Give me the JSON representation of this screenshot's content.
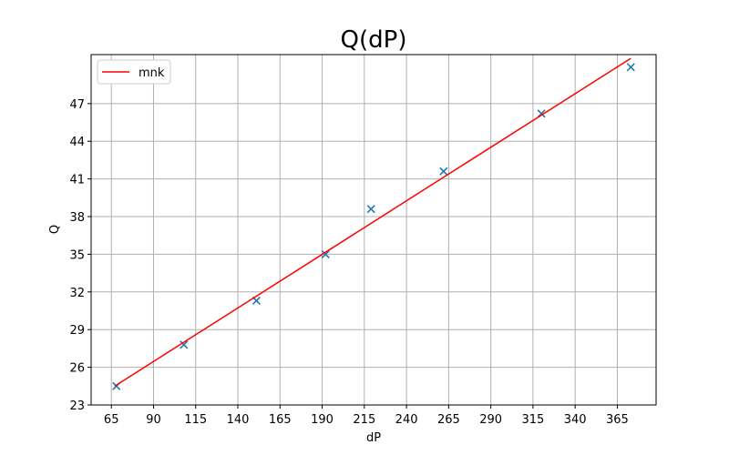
{
  "chart_data": {
    "type": "scatter",
    "title": "Q(dP)",
    "xlabel": "dP",
    "ylabel": "Q",
    "xlim": [
      53,
      388
    ],
    "ylim": [
      23,
      50.9
    ],
    "xticks": [
      65,
      90,
      115,
      140,
      165,
      190,
      215,
      240,
      265,
      290,
      315,
      340,
      365
    ],
    "yticks": [
      23,
      26,
      29,
      32,
      35,
      38,
      41,
      44,
      47
    ],
    "grid": true,
    "legend_position": "top-left",
    "series": [
      {
        "name": "",
        "kind": "scatter",
        "marker": "x",
        "color": "#1f77b4",
        "x": [
          68,
          108,
          151,
          192,
          219,
          262,
          320,
          373
        ],
        "y": [
          24.5,
          27.8,
          31.3,
          35.0,
          38.6,
          41.6,
          46.2,
          49.9
        ]
      },
      {
        "name": "mnk",
        "kind": "line",
        "color": "#ff0000",
        "x": [
          67,
          373
        ],
        "y": [
          24.5,
          50.6
        ]
      }
    ]
  }
}
